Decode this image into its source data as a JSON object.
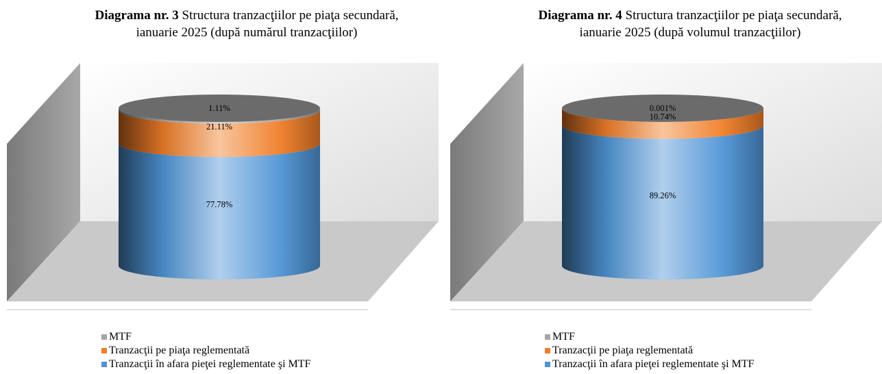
{
  "colors": {
    "mtf": "#a5a5a5",
    "reglementata": "#f07d28",
    "afara": "#4f95d6"
  },
  "chart_data": [
    {
      "type": "stacked-cylinder",
      "title_bold": "Diagrama nr. 3",
      "title_rest": " Structura tranzacţiilor pe piaţa secundară,",
      "title_line2": "ianuarie 2025 (după numărul tranzacţiilor)",
      "series": [
        {
          "name": "Tranzacţii în afara pieţei reglementate şi MTF",
          "value": 77.78,
          "label": "77.78%",
          "color": "#4f95d6"
        },
        {
          "name": "Tranzacţii pe piaţa reglementată",
          "value": 21.11,
          "label": "21.11%",
          "color": "#f07d28"
        },
        {
          "name": "MTF",
          "value": 1.11,
          "label": "1.11%",
          "color": "#a5a5a5"
        }
      ],
      "legend": [
        "MTF",
        "Tranzacţii pe piaţa reglementată",
        "Tranzacţii în afara pieţei reglementate şi MTF"
      ],
      "legend_placement": "bottom"
    },
    {
      "type": "stacked-cylinder",
      "title_bold": "Diagrama nr. 4",
      "title_rest": " Structura tranzacţiilor pe piaţa secundară,",
      "title_line2": "ianuarie 2025 (după volumul tranzacţiilor)",
      "series": [
        {
          "name": "Tranzacţii în afara pieţei reglementate şi MTF",
          "value": 89.26,
          "label": "89.26%",
          "color": "#4f95d6"
        },
        {
          "name": "Tranzacţii pe piaţa reglementată",
          "value": 10.74,
          "label": "10.74%",
          "color": "#f07d28"
        },
        {
          "name": "MTF",
          "value": 0.001,
          "label": "0.001%",
          "color": "#a5a5a5"
        }
      ],
      "legend": [
        "MTF",
        "Tranzacţii pe piaţa reglementată",
        "Tranzacţii în afara pieţei reglementate şi MTF"
      ],
      "legend_placement": "bottom"
    }
  ]
}
